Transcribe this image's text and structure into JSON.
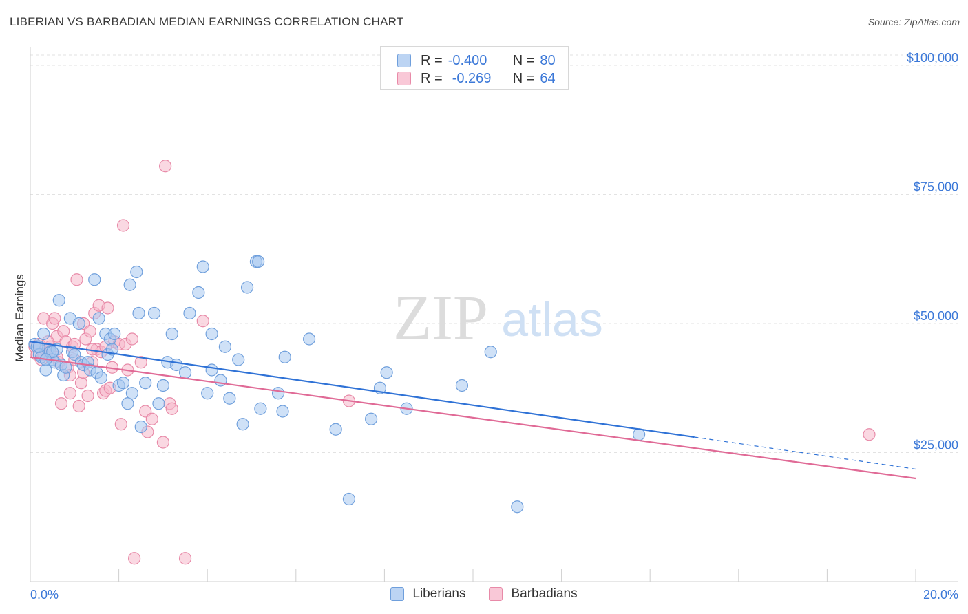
{
  "header": {
    "title": "LIBERIAN VS BARBADIAN MEDIAN EARNINGS CORRELATION CHART",
    "source": "Source: ZipAtlas.com"
  },
  "legend": {
    "r_label": "R =",
    "n_label": "N =",
    "rows": [
      {
        "name": "Liberians",
        "r": "-0.400",
        "n": "80"
      },
      {
        "name": "Barbadians",
        "r": "-0.269",
        "n": "64"
      }
    ]
  },
  "watermark": {
    "zip": "ZIP",
    "atlas": "atlas"
  },
  "colors": {
    "blue_fill": "#a8c8f0",
    "blue_stroke": "#6f9fdc",
    "blue_line": "#2f72d6",
    "pink_fill": "#f5b8cb",
    "pink_stroke": "#e88aa8",
    "pink_line": "#e06a96",
    "tick_text": "#3b78d8",
    "grid": "#e2e2e2"
  },
  "chart_data": {
    "type": "scatter",
    "title": "LIBERIAN VS BARBADIAN MEDIAN EARNINGS CORRELATION CHART",
    "xlabel": "",
    "ylabel": "Median Earnings",
    "xlim": [
      0,
      20
    ],
    "ylim": [
      0,
      102000
    ],
    "x_tick_labels": [
      {
        "value": 0,
        "label": "0.0%"
      },
      {
        "value": 20,
        "label": "20.0%"
      }
    ],
    "y_ticks": [
      {
        "value": 25000,
        "label": "$25,000"
      },
      {
        "value": 50000,
        "label": "$50,000"
      },
      {
        "value": 75000,
        "label": "$75,000"
      },
      {
        "value": 100000,
        "label": "$100,000"
      }
    ],
    "series": [
      {
        "name": "Liberians",
        "r": -0.4,
        "n": 80,
        "trend": {
          "x0": 0.0,
          "y0": 46500,
          "x1": 15.0,
          "y1": 28000,
          "dashed_to_x": 20.0,
          "dashed_to_y": 21800
        },
        "points": [
          [
            0.1,
            46000
          ],
          [
            0.15,
            45500
          ],
          [
            0.2,
            44000
          ],
          [
            0.25,
            43500
          ],
          [
            0.3,
            48000
          ],
          [
            0.35,
            41000
          ],
          [
            0.4,
            45000
          ],
          [
            0.45,
            44500
          ],
          [
            0.5,
            43000
          ],
          [
            0.55,
            42500
          ],
          [
            0.6,
            45000
          ],
          [
            0.65,
            54500
          ],
          [
            0.7,
            42000
          ],
          [
            0.75,
            40000
          ],
          [
            0.8,
            41500
          ],
          [
            0.9,
            51000
          ],
          [
            0.95,
            44500
          ],
          [
            1.0,
            44000
          ],
          [
            1.1,
            50000
          ],
          [
            1.15,
            42500
          ],
          [
            1.2,
            42000
          ],
          [
            1.3,
            42500
          ],
          [
            1.35,
            41000
          ],
          [
            1.45,
            58500
          ],
          [
            1.5,
            40500
          ],
          [
            1.55,
            51000
          ],
          [
            1.6,
            39500
          ],
          [
            1.7,
            48000
          ],
          [
            1.75,
            44000
          ],
          [
            1.8,
            47000
          ],
          [
            1.85,
            45000
          ],
          [
            1.9,
            48000
          ],
          [
            2.0,
            38000
          ],
          [
            2.1,
            38500
          ],
          [
            2.2,
            34500
          ],
          [
            2.25,
            57500
          ],
          [
            2.3,
            36500
          ],
          [
            2.4,
            60000
          ],
          [
            2.45,
            52000
          ],
          [
            2.5,
            30000
          ],
          [
            2.6,
            38500
          ],
          [
            2.8,
            52000
          ],
          [
            2.9,
            34500
          ],
          [
            3.0,
            38000
          ],
          [
            3.1,
            42500
          ],
          [
            3.2,
            48000
          ],
          [
            3.3,
            42000
          ],
          [
            3.5,
            40500
          ],
          [
            3.6,
            52000
          ],
          [
            3.8,
            56000
          ],
          [
            3.9,
            61000
          ],
          [
            4.0,
            36500
          ],
          [
            4.1,
            41000
          ],
          [
            4.1,
            48000
          ],
          [
            4.3,
            39000
          ],
          [
            4.4,
            45500
          ],
          [
            4.5,
            35500
          ],
          [
            4.7,
            43000
          ],
          [
            4.8,
            30500
          ],
          [
            4.9,
            57000
          ],
          [
            5.1,
            62000
          ],
          [
            5.15,
            62000
          ],
          [
            5.2,
            33500
          ],
          [
            5.6,
            36500
          ],
          [
            5.7,
            33000
          ],
          [
            5.75,
            43500
          ],
          [
            6.3,
            47000
          ],
          [
            6.9,
            29500
          ],
          [
            7.2,
            16000
          ],
          [
            7.7,
            31500
          ],
          [
            7.9,
            37500
          ],
          [
            8.05,
            40500
          ],
          [
            8.5,
            33500
          ],
          [
            9.75,
            38000
          ],
          [
            10.4,
            44500
          ],
          [
            11.0,
            14500
          ],
          [
            13.75,
            28500
          ],
          [
            0.2,
            45500
          ],
          [
            0.5,
            44500
          ],
          [
            0.35,
            43000
          ]
        ]
      },
      {
        "name": "Barbadians",
        "r": -0.269,
        "n": 64,
        "trend": {
          "x0": 0.0,
          "y0": 43500,
          "x1": 20.0,
          "y1": 20000
        },
        "points": [
          [
            0.1,
            45500
          ],
          [
            0.15,
            44000
          ],
          [
            0.2,
            46000
          ],
          [
            0.25,
            43000
          ],
          [
            0.3,
            51000
          ],
          [
            0.35,
            45000
          ],
          [
            0.4,
            44500
          ],
          [
            0.45,
            45500
          ],
          [
            0.5,
            50000
          ],
          [
            0.55,
            51000
          ],
          [
            0.6,
            47500
          ],
          [
            0.65,
            42500
          ],
          [
            0.7,
            34500
          ],
          [
            0.75,
            48500
          ],
          [
            0.8,
            46500
          ],
          [
            0.85,
            41500
          ],
          [
            0.9,
            40000
          ],
          [
            0.95,
            45500
          ],
          [
            1.0,
            46000
          ],
          [
            1.05,
            58500
          ],
          [
            1.1,
            34000
          ],
          [
            1.15,
            38500
          ],
          [
            1.2,
            50000
          ],
          [
            1.25,
            47000
          ],
          [
            1.3,
            36000
          ],
          [
            1.35,
            48500
          ],
          [
            1.4,
            42500
          ],
          [
            1.45,
            52000
          ],
          [
            1.5,
            45000
          ],
          [
            1.55,
            53500
          ],
          [
            1.6,
            44500
          ],
          [
            1.65,
            36500
          ],
          [
            1.7,
            37000
          ],
          [
            1.75,
            53000
          ],
          [
            1.8,
            37500
          ],
          [
            1.85,
            41500
          ],
          [
            1.9,
            46500
          ],
          [
            2.0,
            46000
          ],
          [
            2.05,
            30500
          ],
          [
            2.1,
            69000
          ],
          [
            2.15,
            46000
          ],
          [
            2.2,
            41000
          ],
          [
            2.3,
            47000
          ],
          [
            2.35,
            4500
          ],
          [
            2.6,
            33000
          ],
          [
            2.65,
            29000
          ],
          [
            2.75,
            31500
          ],
          [
            3.0,
            27000
          ],
          [
            3.05,
            80500
          ],
          [
            3.15,
            34500
          ],
          [
            3.2,
            33500
          ],
          [
            3.5,
            4500
          ],
          [
            3.9,
            50500
          ],
          [
            7.2,
            35000
          ],
          [
            18.95,
            28500
          ],
          [
            0.3,
            44000
          ],
          [
            0.6,
            43500
          ],
          [
            1.0,
            43000
          ],
          [
            1.4,
            45000
          ],
          [
            0.9,
            36500
          ],
          [
            1.2,
            40500
          ],
          [
            2.5,
            42500
          ],
          [
            0.4,
            46500
          ],
          [
            1.7,
            45500
          ]
        ]
      }
    ]
  }
}
